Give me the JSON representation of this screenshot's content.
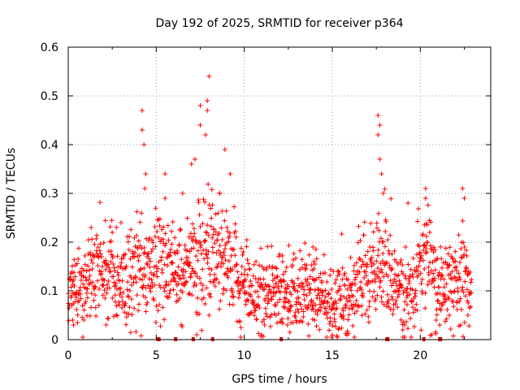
{
  "chart_data": {
    "type": "scatter",
    "title": "Day 192 of 2025, SRMTID for receiver p364",
    "xlabel": "GPS time / hours",
    "ylabel": "SRMTID / TECUs",
    "xlim": [
      0,
      24
    ],
    "ylim": [
      0,
      0.6
    ],
    "xticks": [
      "0",
      "5",
      "10",
      "15",
      "20"
    ],
    "yticks": [
      "0",
      "0.1",
      "0.2",
      "0.3",
      "0.4",
      "0.5",
      "0.6"
    ],
    "grid": true,
    "marker": "+",
    "color": "#ff0000",
    "series": [
      {
        "name": "SRMTID",
        "profile_hours": [
          0,
          0.5,
          1,
          1.5,
          2,
          2.5,
          3,
          3.5,
          4,
          4.5,
          5,
          5.5,
          6,
          6.5,
          7,
          7.5,
          8,
          8.5,
          9,
          9.5,
          10,
          10.5,
          11,
          11.5,
          12,
          12.5,
          13,
          13.5,
          14,
          14.5,
          15,
          15.5,
          16,
          16.5,
          17,
          17.5,
          18,
          18.5,
          19,
          19.5,
          20,
          20.5,
          21,
          21.5,
          22,
          22.5,
          22.9
        ],
        "profile_mean": [
          0.1,
          0.11,
          0.12,
          0.13,
          0.14,
          0.13,
          0.12,
          0.13,
          0.15,
          0.14,
          0.15,
          0.16,
          0.14,
          0.15,
          0.16,
          0.17,
          0.18,
          0.17,
          0.15,
          0.13,
          0.11,
          0.1,
          0.09,
          0.09,
          0.1,
          0.09,
          0.09,
          0.1,
          0.1,
          0.08,
          0.07,
          0.08,
          0.09,
          0.1,
          0.12,
          0.14,
          0.14,
          0.11,
          0.1,
          0.09,
          0.14,
          0.17,
          0.12,
          0.09,
          0.11,
          0.12,
          0.11
        ],
        "spikes": [
          {
            "x": 4.2,
            "y": 0.47
          },
          {
            "x": 4.2,
            "y": 0.43
          },
          {
            "x": 4.3,
            "y": 0.4
          },
          {
            "x": 4.4,
            "y": 0.34
          },
          {
            "x": 4.35,
            "y": 0.31
          },
          {
            "x": 5.5,
            "y": 0.34
          },
          {
            "x": 5.5,
            "y": 0.29
          },
          {
            "x": 6.5,
            "y": 0.3
          },
          {
            "x": 7.0,
            "y": 0.36
          },
          {
            "x": 7.2,
            "y": 0.37
          },
          {
            "x": 7.5,
            "y": 0.48
          },
          {
            "x": 7.5,
            "y": 0.44
          },
          {
            "x": 7.8,
            "y": 0.42
          },
          {
            "x": 7.9,
            "y": 0.47
          },
          {
            "x": 8.0,
            "y": 0.54
          },
          {
            "x": 7.9,
            "y": 0.49
          },
          {
            "x": 8.6,
            "y": 0.3
          },
          {
            "x": 8.9,
            "y": 0.39
          },
          {
            "x": 9.2,
            "y": 0.34
          },
          {
            "x": 13.9,
            "y": 0.19
          },
          {
            "x": 17.6,
            "y": 0.46
          },
          {
            "x": 17.7,
            "y": 0.44
          },
          {
            "x": 17.6,
            "y": 0.42
          },
          {
            "x": 17.7,
            "y": 0.37
          },
          {
            "x": 17.8,
            "y": 0.34
          },
          {
            "x": 17.9,
            "y": 0.3
          },
          {
            "x": 19.3,
            "y": 0.28
          },
          {
            "x": 20.3,
            "y": 0.31
          },
          {
            "x": 20.3,
            "y": 0.29
          },
          {
            "x": 22.4,
            "y": 0.31
          },
          {
            "x": 22.5,
            "y": 0.29
          },
          {
            "x": 2.5,
            "y": 0.22
          },
          {
            "x": 1.3,
            "y": 0.23
          },
          {
            "x": 3.0,
            "y": 0.24
          }
        ],
        "lows": [
          {
            "x": 0.3,
            "y": 0.03
          },
          {
            "x": 0.25,
            "y": 0.04
          },
          {
            "x": 7.3,
            "y": 0.01
          },
          {
            "x": 8.0,
            "y": 0.05
          },
          {
            "x": 19.0,
            "y": 0.02
          },
          {
            "x": 19.1,
            "y": 0.03
          },
          {
            "x": 20.9,
            "y": 0.04
          },
          {
            "x": 21.1,
            "y": 0.03
          },
          {
            "x": 14.0,
            "y": 0.04
          },
          {
            "x": 11.8,
            "y": 0.05
          },
          {
            "x": 22.7,
            "y": 0.05
          }
        ]
      }
    ],
    "bottom_markers_hours": [
      5.1,
      5.15,
      6.1,
      7.1,
      8.2,
      12.1,
      18.1,
      18.15,
      20.2,
      21.1,
      21.15
    ]
  }
}
